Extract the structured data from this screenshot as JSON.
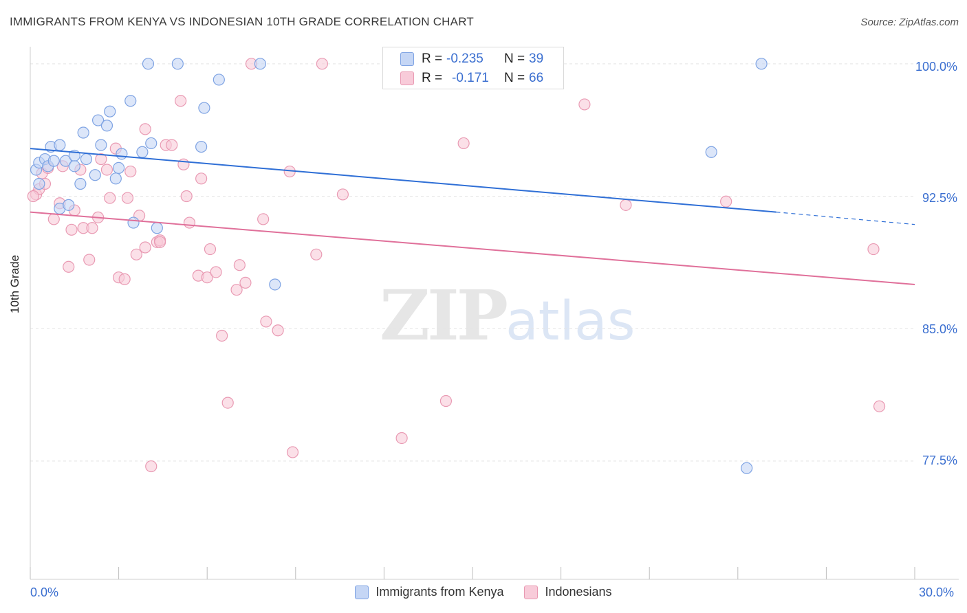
{
  "header": {
    "title": "IMMIGRANTS FROM KENYA VS INDONESIAN 10TH GRADE CORRELATION CHART",
    "source": "Source: ZipAtlas.com"
  },
  "watermark": {
    "zip": "ZIP",
    "atlas": "atlas"
  },
  "stats": {
    "blue": {
      "r_label": "R =",
      "r_value": "-0.235",
      "n_label": "N =",
      "n_value": "39"
    },
    "pink": {
      "r_label": "R =",
      "r_value": "-0.171",
      "n_label": "N =",
      "n_value": "66"
    }
  },
  "legend": {
    "blue_label": "Immigrants from Kenya",
    "pink_label": "Indonesians"
  },
  "colors": {
    "blue_fill": "#c5d6f5",
    "blue_stroke": "#7ea3e3",
    "blue_line": "#2f6fd6",
    "pink_fill": "#f8cbd9",
    "pink_stroke": "#e99ab3",
    "pink_line": "#e0709a",
    "grid": "#e4e4e4",
    "axis_text": "#3b6fd0"
  },
  "chart_data": {
    "type": "scatter",
    "title": "IMMIGRANTS FROM KENYA VS INDONESIAN 10TH GRADE CORRELATION CHART",
    "xlabel": "",
    "ylabel": "10th Grade",
    "xlim": [
      0,
      30
    ],
    "ylim": [
      70.8,
      101.2
    ],
    "x_tick_labels": [
      "0.0%",
      "30.0%"
    ],
    "y_ticks": [
      100.0,
      92.5,
      85.0,
      77.5
    ],
    "y_tick_labels": [
      "100.0%",
      "92.5%",
      "85.0%",
      "77.5%"
    ],
    "grid": true,
    "series": [
      {
        "name": "Immigrants from Kenya",
        "color": "blue",
        "trend": {
          "x0": 0,
          "y0": 95.2,
          "x1": 25.3,
          "y1": 91.6,
          "dash_x1": 30,
          "dash_y1": 90.9
        },
        "points": [
          [
            0.2,
            94.0
          ],
          [
            0.3,
            93.2
          ],
          [
            0.3,
            94.4
          ],
          [
            0.5,
            94.6
          ],
          [
            0.6,
            94.2
          ],
          [
            0.7,
            95.3
          ],
          [
            0.8,
            94.5
          ],
          [
            1.0,
            95.4
          ],
          [
            1.2,
            94.5
          ],
          [
            1.0,
            91.8
          ],
          [
            1.3,
            92.0
          ],
          [
            1.5,
            94.8
          ],
          [
            1.5,
            94.2
          ],
          [
            1.7,
            93.2
          ],
          [
            1.8,
            96.1
          ],
          [
            1.9,
            94.6
          ],
          [
            2.2,
            93.7
          ],
          [
            2.3,
            96.8
          ],
          [
            2.4,
            95.4
          ],
          [
            2.6,
            96.5
          ],
          [
            2.7,
            97.3
          ],
          [
            2.9,
            93.5
          ],
          [
            3.0,
            94.1
          ],
          [
            3.1,
            94.9
          ],
          [
            3.4,
            97.9
          ],
          [
            3.5,
            91.0
          ],
          [
            3.8,
            95.0
          ],
          [
            4.1,
            95.5
          ],
          [
            4.3,
            90.7
          ],
          [
            4.0,
            100.0
          ],
          [
            5.0,
            100.0
          ],
          [
            5.8,
            95.3
          ],
          [
            5.9,
            97.5
          ],
          [
            6.4,
            99.1
          ],
          [
            7.8,
            100.0
          ],
          [
            8.3,
            87.5
          ],
          [
            23.1,
            95.0
          ],
          [
            24.3,
            77.1
          ],
          [
            24.8,
            100.0
          ]
        ]
      },
      {
        "name": "Indonesians",
        "color": "pink",
        "trend": {
          "x0": 0,
          "y0": 91.6,
          "x1": 30,
          "y1": 87.5
        },
        "points": [
          [
            0.2,
            92.6
          ],
          [
            0.3,
            92.9
          ],
          [
            0.4,
            93.8
          ],
          [
            0.5,
            93.2
          ],
          [
            0.6,
            94.1
          ],
          [
            0.8,
            91.2
          ],
          [
            1.0,
            92.1
          ],
          [
            1.1,
            94.2
          ],
          [
            1.3,
            88.5
          ],
          [
            1.4,
            90.6
          ],
          [
            1.5,
            91.7
          ],
          [
            1.7,
            94.0
          ],
          [
            1.8,
            90.7
          ],
          [
            2.0,
            88.9
          ],
          [
            2.1,
            90.7
          ],
          [
            2.3,
            91.3
          ],
          [
            2.4,
            94.6
          ],
          [
            2.6,
            94.0
          ],
          [
            2.7,
            92.4
          ],
          [
            2.9,
            95.2
          ],
          [
            3.0,
            87.9
          ],
          [
            3.2,
            87.8
          ],
          [
            3.3,
            92.4
          ],
          [
            3.4,
            93.9
          ],
          [
            3.6,
            89.2
          ],
          [
            3.7,
            91.4
          ],
          [
            3.9,
            89.6
          ],
          [
            3.9,
            96.3
          ],
          [
            4.1,
            77.2
          ],
          [
            4.3,
            89.9
          ],
          [
            4.4,
            90.0
          ],
          [
            4.6,
            95.4
          ],
          [
            4.8,
            95.4
          ],
          [
            5.1,
            97.9
          ],
          [
            5.2,
            94.3
          ],
          [
            5.3,
            92.5
          ],
          [
            5.4,
            91.0
          ],
          [
            5.7,
            88.0
          ],
          [
            5.8,
            93.5
          ],
          [
            6.0,
            87.9
          ],
          [
            6.1,
            89.5
          ],
          [
            6.3,
            88.2
          ],
          [
            6.5,
            84.6
          ],
          [
            6.7,
            80.8
          ],
          [
            7.0,
            87.2
          ],
          [
            7.1,
            88.6
          ],
          [
            7.3,
            87.6
          ],
          [
            7.5,
            100.0
          ],
          [
            7.9,
            91.2
          ],
          [
            8.0,
            85.4
          ],
          [
            8.4,
            84.9
          ],
          [
            8.8,
            93.9
          ],
          [
            8.9,
            78.0
          ],
          [
            9.7,
            89.2
          ],
          [
            9.9,
            100.0
          ],
          [
            10.6,
            92.6
          ],
          [
            12.6,
            78.8
          ],
          [
            14.1,
            80.9
          ],
          [
            14.7,
            95.5
          ],
          [
            18.8,
            97.7
          ],
          [
            20.2,
            92.0
          ],
          [
            23.6,
            92.2
          ],
          [
            28.6,
            89.5
          ],
          [
            28.8,
            80.6
          ],
          [
            0.1,
            92.5
          ],
          [
            4.4,
            89.9
          ]
        ]
      }
    ]
  }
}
